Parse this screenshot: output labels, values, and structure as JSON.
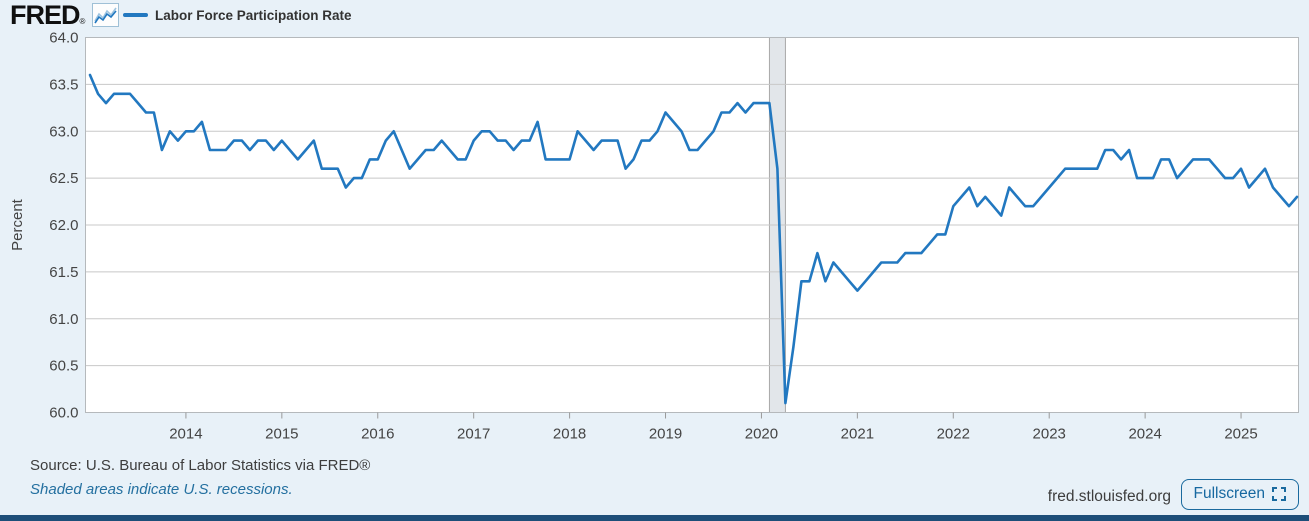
{
  "header": {
    "logo_text": "FRED",
    "logo_reg": "®",
    "legend_label": "Labor Force Participation Rate"
  },
  "chart_data": {
    "type": "line",
    "title": "Labor Force Participation Rate",
    "ylabel": "Percent",
    "xlabel": "",
    "ylim": [
      60.0,
      64.0
    ],
    "yticks": [
      64.0,
      63.5,
      63.0,
      62.5,
      62.0,
      61.5,
      61.0,
      60.5,
      60.0
    ],
    "xticks": [
      2014,
      2015,
      2016,
      2017,
      2018,
      2019,
      2020,
      2021,
      2022,
      2023,
      2024,
      2025
    ],
    "frequency": "monthly",
    "start": "2013-01",
    "end": "2025-08",
    "grid": "horizontal",
    "legend_position": "top-left",
    "recession_bands": [
      {
        "start": "2020-02",
        "end": "2020-04"
      }
    ],
    "series": [
      {
        "name": "Labor Force Participation Rate",
        "units": "Percent",
        "color": "#2278c0",
        "values": [
          63.6,
          63.4,
          63.3,
          63.4,
          63.4,
          63.4,
          63.3,
          63.2,
          63.2,
          62.8,
          63.0,
          62.9,
          63.0,
          63.0,
          63.1,
          62.8,
          62.8,
          62.8,
          62.9,
          62.9,
          62.8,
          62.9,
          62.9,
          62.8,
          62.9,
          62.8,
          62.7,
          62.8,
          62.9,
          62.6,
          62.6,
          62.6,
          62.4,
          62.5,
          62.5,
          62.7,
          62.7,
          62.9,
          63.0,
          62.8,
          62.6,
          62.7,
          62.8,
          62.8,
          62.9,
          62.8,
          62.7,
          62.7,
          62.9,
          63.0,
          63.0,
          62.9,
          62.9,
          62.8,
          62.9,
          62.9,
          63.1,
          62.7,
          62.7,
          62.7,
          62.7,
          63.0,
          62.9,
          62.8,
          62.9,
          62.9,
          62.9,
          62.6,
          62.7,
          62.9,
          62.9,
          63.0,
          63.2,
          63.1,
          63.0,
          62.8,
          62.8,
          62.9,
          63.0,
          63.2,
          63.2,
          63.3,
          63.2,
          63.3,
          63.3,
          63.3,
          62.6,
          60.1,
          60.7,
          61.4,
          61.4,
          61.7,
          61.4,
          61.6,
          61.5,
          61.4,
          61.3,
          61.4,
          61.5,
          61.6,
          61.6,
          61.6,
          61.7,
          61.7,
          61.7,
          61.8,
          61.9,
          61.9,
          62.2,
          62.3,
          62.4,
          62.2,
          62.3,
          62.2,
          62.1,
          62.4,
          62.3,
          62.2,
          62.2,
          62.3,
          62.4,
          62.5,
          62.6,
          62.6,
          62.6,
          62.6,
          62.6,
          62.8,
          62.8,
          62.7,
          62.8,
          62.5,
          62.5,
          62.5,
          62.7,
          62.7,
          62.5,
          62.6,
          62.7,
          62.7,
          62.7,
          62.6,
          62.5,
          62.5,
          62.6,
          62.4,
          62.5,
          62.6,
          62.4,
          62.3,
          62.2,
          62.3
        ]
      }
    ]
  },
  "footer": {
    "source": "Source: U.S. Bureau of Labor Statistics via FRED®",
    "note": "Shaded areas indicate U.S. recessions.",
    "site": "fred.stlouisfed.org",
    "fullscreen_label": "Fullscreen"
  },
  "colors": {
    "page_bg": "#e8f1f8",
    "plot_bg": "#ffffff",
    "grid": "#c8c8c8",
    "plot_border": "#b5b9bc",
    "line": "#2278c0",
    "recession_fill": "#e2e6ea",
    "recession_edge": "#a8a8a8",
    "accent_blue": "#1a6a9e",
    "bottom_bar": "#1d4e79"
  }
}
